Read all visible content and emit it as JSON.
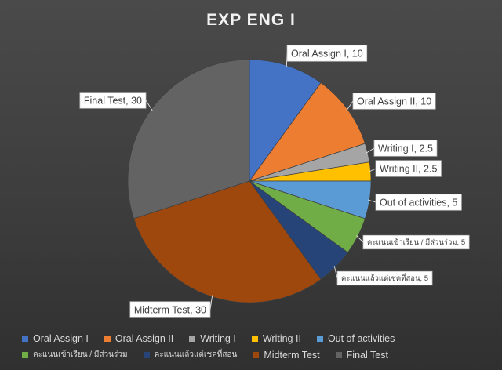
{
  "chart_data": {
    "type": "pie",
    "title": "EXP ENG I",
    "categories": [
      "Oral Assign I",
      "Oral Assign II",
      "Writing I",
      "Writing II",
      "Out of activities",
      "คะแนนเข้าเรียน / มีส่วนร่วม",
      "คะแนนแล้วแต่เชคที่สอน",
      "Midterm Test",
      "Final Test"
    ],
    "values": [
      10,
      10,
      2.5,
      2.5,
      5,
      5,
      5,
      30,
      30
    ],
    "data_labels": [
      "Oral Assign I, 10",
      "Oral Assign II, 10",
      "Writing I, 2.5",
      "Writing II, 2.5",
      "Out of activities, 5",
      "คะแนนเข้าเรียน / มีส่วนร่วม, 5",
      "คะแนนแล้วแต่เชคที่สอน, 5",
      "Midterm Test, 30",
      "Final Test, 30"
    ],
    "colors": [
      "#4472C4",
      "#ED7D31",
      "#A5A5A5",
      "#FFC000",
      "#5B9BD5",
      "#70AD47",
      "#264478",
      "#9E480E",
      "#636363"
    ],
    "legend_position": "bottom"
  }
}
